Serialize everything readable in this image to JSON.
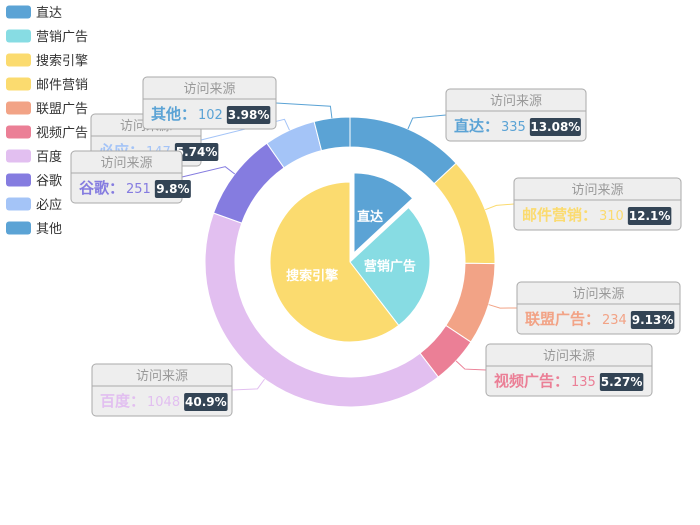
{
  "chart_data": {
    "type": "pie",
    "variant": "nested-pie-with-outer-donut",
    "legend": {
      "placement": "top-left",
      "items": [
        {
          "label": "直达",
          "color": "#5ba3d5"
        },
        {
          "label": "营销广告",
          "color": "#87dce3"
        },
        {
          "label": "搜索引擎",
          "color": "#fbdb6f"
        },
        {
          "label": "邮件营销",
          "color": "#fbdb6f"
        },
        {
          "label": "联盟广告",
          "color": "#f2a386"
        },
        {
          "label": "视频广告",
          "color": "#eb7f96"
        },
        {
          "label": "百度",
          "color": "#e2bff0"
        },
        {
          "label": "谷歌",
          "color": "#857ce0"
        },
        {
          "label": "必应",
          "color": "#a4c4f7"
        },
        {
          "label": "其他",
          "color": "#5ba3d5"
        }
      ]
    },
    "inner_series": {
      "slices": [
        {
          "name": "直达",
          "value": 335,
          "color": "#5ba3d5",
          "selected": true
        },
        {
          "name": "营销广告",
          "value": 679,
          "color": "#87dce3"
        },
        {
          "name": "搜索引擎",
          "value": 1548,
          "color": "#fbdb6f"
        }
      ]
    },
    "outer_series": {
      "tooltip_title": "访问来源",
      "slices": [
        {
          "name": "直达",
          "value": 335,
          "percent": "13.08%",
          "color": "#5ba3d5"
        },
        {
          "name": "邮件营销",
          "value": 310,
          "percent": "12.1%",
          "color": "#fbdb6f"
        },
        {
          "name": "联盟广告",
          "value": 234,
          "percent": "9.13%",
          "color": "#f2a386"
        },
        {
          "name": "视频广告",
          "value": 135,
          "percent": "5.27%",
          "color": "#eb7f96"
        },
        {
          "name": "百度",
          "value": 1048,
          "percent": "40.9%",
          "color": "#e2bff0"
        },
        {
          "name": "谷歌",
          "value": 251,
          "percent": "9.8%",
          "color": "#857ce0"
        },
        {
          "name": "必应",
          "value": 147,
          "percent": "5.74%",
          "color": "#a4c4f7"
        },
        {
          "name": "其他",
          "value": 102,
          "percent": "3.98%",
          "color": "#5ba3d5"
        }
      ]
    }
  }
}
